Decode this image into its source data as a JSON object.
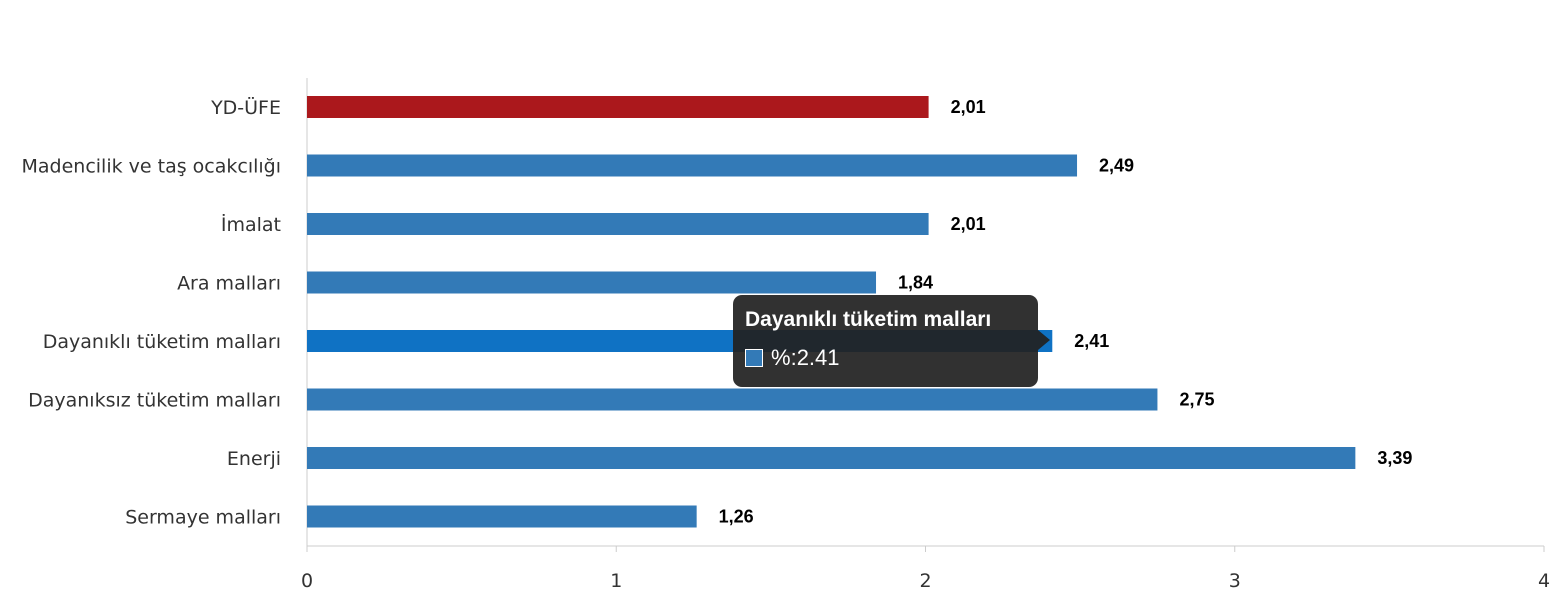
{
  "chart_data": {
    "type": "bar",
    "orientation": "horizontal",
    "categories": [
      "YD-ÜFE",
      "Madencilik ve taş ocakcılığı",
      "İmalat",
      "Ara malları",
      "Dayanıklı tüketim malları",
      "Dayanıksız tüketim malları",
      "Enerji",
      "Sermaye malları"
    ],
    "values": [
      2.01,
      2.49,
      2.01,
      1.84,
      2.41,
      2.75,
      3.39,
      1.26
    ],
    "data_labels": [
      "2,01",
      "2,49",
      "2,01",
      "1,84",
      "2,41",
      "2,75",
      "3,39",
      "1,26"
    ],
    "xlim": [
      0,
      4
    ],
    "x_ticks": [
      0,
      1,
      2,
      3,
      4
    ],
    "x_tick_labels": [
      "0",
      "1",
      "2",
      "3",
      "4"
    ],
    "grid": false,
    "colors": {
      "default_bar": "#337ab7",
      "highlight_bar": "#ab181c",
      "hover_bar": "#0f72c4"
    },
    "highlight_index": 0,
    "hover_index": 4
  },
  "tooltip": {
    "title": "Dayanıklı tüketim malları",
    "series_label": "%",
    "value_text": "2.41",
    "swatch_color": "#337ab7"
  }
}
